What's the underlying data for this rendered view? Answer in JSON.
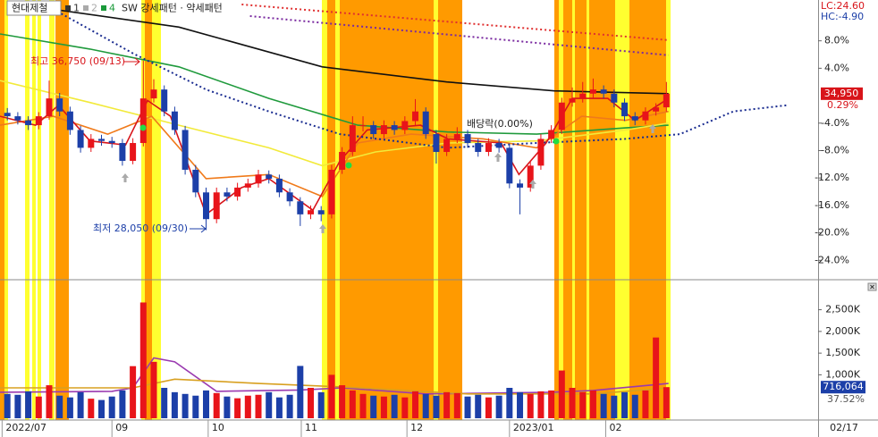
{
  "header": {
    "name": "현대제철",
    "items": [
      {
        "label": "1",
        "color": "#333333"
      },
      {
        "label": "2",
        "color": "#aaaaaa"
      },
      {
        "label": "4",
        "color": "#1a9a3a"
      }
    ],
    "pattern": "SW 강세패턴 · 약세패턴",
    "lc": "LC:24.60",
    "hc": "HC:-4.90"
  },
  "chart_data": [
    {
      "type": "candlestick",
      "xlim": [
        -0.7,
        77.5
      ],
      "ylim": [
        -26.7,
        13.95
      ],
      "yticks": [
        {
          "value": 8,
          "label": "8.0%"
        },
        {
          "value": 4,
          "label": "4.0%"
        },
        {
          "value": -4,
          "label": "-4.0%"
        },
        {
          "value": -8,
          "label": "-8.0%"
        },
        {
          "value": -12,
          "label": "-12.0%"
        },
        {
          "value": -16,
          "label": "-16.0%"
        },
        {
          "value": -20,
          "label": "-20.0%"
        },
        {
          "value": -24,
          "label": "-24.0%"
        }
      ],
      "up_color": "#e8141a",
      "down_color": "#1c3fa8",
      "ohlc": [
        [
          -2.5,
          -1.8,
          -3.6,
          -3.0
        ],
        [
          -3.0,
          -2.4,
          -4.2,
          -3.6
        ],
        [
          -3.6,
          -3.0,
          -5.0,
          -4.3
        ],
        [
          -4.3,
          -2.4,
          -4.9,
          -3.0
        ],
        [
          -3.0,
          2.2,
          -3.5,
          -0.4
        ],
        [
          -0.4,
          0.4,
          -3.0,
          -2.3
        ],
        [
          -2.3,
          -1.6,
          -5.7,
          -5.0
        ],
        [
          -5.0,
          -4.4,
          -8.3,
          -7.6
        ],
        [
          -7.6,
          -5.6,
          -8.2,
          -6.3
        ],
        [
          -6.3,
          -5.7,
          -7.3,
          -6.6
        ],
        [
          -6.6,
          -6.0,
          -7.6,
          -6.9
        ],
        [
          -6.9,
          -6.3,
          -10.2,
          -9.5
        ],
        [
          -9.5,
          -6.2,
          -10.0,
          -6.9
        ],
        [
          -6.9,
          5.1,
          -7.4,
          -0.4
        ],
        [
          -0.4,
          2.4,
          -1.0,
          0.9
        ],
        [
          0.9,
          1.5,
          -3.0,
          -2.3
        ],
        [
          -2.3,
          -1.6,
          -5.7,
          -5.0
        ],
        [
          -5.0,
          -4.4,
          -11.5,
          -10.8
        ],
        [
          -10.8,
          -10.1,
          -14.8,
          -14.1
        ],
        [
          -14.1,
          -13.4,
          -19.6,
          -18.0
        ],
        [
          -18.0,
          -13.4,
          -18.6,
          -14.1
        ],
        [
          -14.1,
          -13.4,
          -15.4,
          -14.7
        ],
        [
          -14.7,
          -12.7,
          -15.3,
          -13.4
        ],
        [
          -13.4,
          -12.1,
          -14.0,
          -12.8
        ],
        [
          -12.8,
          -10.8,
          -13.4,
          -11.5
        ],
        [
          -11.5,
          -10.9,
          -12.8,
          -12.1
        ],
        [
          -12.1,
          -11.5,
          -14.8,
          -14.1
        ],
        [
          -14.1,
          -13.5,
          -16.1,
          -15.4
        ],
        [
          -15.4,
          -14.8,
          -19.0,
          -17.3
        ],
        [
          -17.3,
          -16.0,
          -18.0,
          -16.7
        ],
        [
          -16.7,
          -16.1,
          -18.3,
          -17.3
        ],
        [
          -17.3,
          -10.1,
          -17.9,
          -10.8
        ],
        [
          -10.8,
          -7.5,
          -11.4,
          -8.2
        ],
        [
          -8.2,
          -3.0,
          -8.8,
          -4.3
        ],
        [
          -4.3,
          -3.0,
          -5.2,
          -4.3
        ],
        [
          -4.3,
          -3.7,
          -6.3,
          -5.6
        ],
        [
          -5.6,
          -3.6,
          -6.2,
          -4.3
        ],
        [
          -4.3,
          -3.7,
          -5.7,
          -5.0
        ],
        [
          -5.0,
          -3.0,
          -5.6,
          -3.7
        ],
        [
          -3.7,
          -0.5,
          -4.3,
          -2.3
        ],
        [
          -2.3,
          -1.7,
          -6.3,
          -5.6
        ],
        [
          -5.6,
          -5.0,
          -9.9,
          -8.2
        ],
        [
          -8.2,
          -5.6,
          -8.8,
          -6.3
        ],
        [
          -6.3,
          -4.6,
          -6.9,
          -5.6
        ],
        [
          -5.6,
          -5.0,
          -7.6,
          -6.9
        ],
        [
          -6.9,
          -6.3,
          -8.9,
          -8.2
        ],
        [
          -8.2,
          -6.2,
          -8.8,
          -6.9
        ],
        [
          -6.9,
          -6.3,
          -8.3,
          -7.6
        ],
        [
          -7.6,
          -7.0,
          -13.5,
          -12.8
        ],
        [
          -12.8,
          -12.2,
          -17.3,
          -13.4
        ],
        [
          -13.4,
          -9.5,
          -14.0,
          -10.2
        ],
        [
          -10.2,
          -5.6,
          -10.8,
          -6.3
        ],
        [
          -6.3,
          -4.3,
          -6.9,
          -5.0
        ],
        [
          -5.0,
          -0.3,
          -5.6,
          -1.0
        ],
        [
          -1.0,
          1.2,
          -1.6,
          -0.4
        ],
        [
          -0.4,
          2.0,
          -1.0,
          0.3
        ],
        [
          0.3,
          2.5,
          -0.3,
          0.9
        ],
        [
          0.9,
          1.5,
          -0.4,
          0.3
        ],
        [
          0.3,
          0.9,
          -1.7,
          -1.0
        ],
        [
          -1.0,
          -0.4,
          -3.7,
          -3.0
        ],
        [
          -3.0,
          -2.4,
          -4.3,
          -3.6
        ],
        [
          -3.6,
          -1.7,
          -4.2,
          -2.3
        ],
        [
          -2.3,
          -1.1,
          -2.9,
          -1.7
        ],
        [
          -1.7,
          2.0,
          -2.3,
          0.29
        ]
      ],
      "lines": [
        {
          "color": "#111111",
          "style": "solid",
          "x": [
            4.4,
            16.4,
            30.1,
            42,
            52.3,
            63.2
          ],
          "values": [
            12.6,
            10,
            4.2,
            2,
            0.7,
            0.3
          ]
        },
        {
          "color": "#1f9a3c",
          "style": "solid",
          "x": [
            -0.7,
            7.9,
            16.4,
            25,
            33.5,
            42.1,
            50.6,
            59.1,
            63.2
          ],
          "values": [
            9,
            6.8,
            4.2,
            -0.4,
            -4.3,
            -5.3,
            -5.6,
            -4.7,
            -4.3
          ]
        },
        {
          "color": "#f2ea3a",
          "style": "solid",
          "x": [
            -0.7,
            7.9,
            16.4,
            25,
            30.1,
            35.2,
            42.1,
            50.6,
            59.1,
            63.2
          ],
          "values": [
            2.2,
            -1,
            -4.3,
            -7.6,
            -10.2,
            -8.2,
            -6.9,
            -6.6,
            -5,
            -4
          ]
        },
        {
          "color": "#f07a1a",
          "style": "solid",
          "x": [
            -0.7,
            4.4,
            9.6,
            13.8,
            19,
            25,
            30.1,
            33.5,
            38.6,
            45.5,
            50.6,
            54.9,
            59.1,
            63.2
          ],
          "values": [
            -4.3,
            -3,
            -5.6,
            -3,
            -12.1,
            -11.5,
            -14.7,
            -6.9,
            -5.6,
            -6.3,
            -7.6,
            -3,
            -3.6,
            -2.3
          ]
        },
        {
          "color": "#d8141a",
          "style": "solid",
          "x": [
            -0.7,
            2.7,
            4.9,
            7.9,
            11.3,
            13.4,
            15.6,
            19,
            22.4,
            25,
            29.2,
            31.8,
            34.4,
            39.5,
            42.1,
            47.2,
            48.9,
            51.5,
            54,
            57.4,
            60,
            63.2
          ],
          "values": [
            -3,
            -4.3,
            -1.4,
            -6.6,
            -7.2,
            -0.7,
            -3,
            -17.3,
            -13.4,
            -12.1,
            -16.7,
            -9.5,
            -5,
            -4.3,
            -6.3,
            -6.9,
            -11.5,
            -6.9,
            -0.4,
            -0.4,
            -3.6,
            -0.4
          ]
        },
        {
          "color": "#e03030",
          "style": "dotted",
          "x": [
            22.4,
            63.2
          ],
          "values": [
            13.3,
            8.1
          ]
        },
        {
          "color": "#7a2aa0",
          "style": "dotted",
          "x": [
            23.2,
            63.2
          ],
          "values": [
            11.6,
            5.9
          ]
        },
        {
          "color": "#1a2c90",
          "style": "dotted",
          "x": [
            4.4,
            12.1,
            19,
            25,
            31.8,
            42.1,
            50.6,
            59.1,
            64.3,
            69.4,
            74.5
          ],
          "values": [
            12.6,
            6.1,
            0.9,
            -2.3,
            -5.6,
            -7.6,
            -6.9,
            -6.3,
            -5.6,
            -2.3,
            -1.4
          ]
        }
      ],
      "last_price": "34,950",
      "last_label": {
        "value": 0.29,
        "label": "0.29%"
      },
      "annotations": [
        "최고 36,750 (09/13)",
        "최저 28,050 (09/30)",
        "배당락(0.00%)"
      ]
    },
    {
      "type": "bar",
      "xlim": [
        -0.7,
        77.5
      ],
      "ylim": [
        0,
        3150
      ],
      "yticks": [
        {
          "value": 1000,
          "label": "1,000K"
        },
        {
          "value": 1500,
          "label": "1,500K"
        },
        {
          "value": 2000,
          "label": "2,000K"
        },
        {
          "value": 2500,
          "label": "2,500K"
        }
      ],
      "xticks": [
        {
          "value": -0.5,
          "label": "2022/07"
        },
        {
          "value": 10,
          "label": "09"
        },
        {
          "value": 19.2,
          "label": "10"
        },
        {
          "value": 28.1,
          "label": "11"
        },
        {
          "value": 38.2,
          "label": "12"
        },
        {
          "value": 48,
          "label": "2023/01"
        },
        {
          "value": 57.2,
          "label": "02"
        }
      ],
      "last_date": "02/17",
      "values": [
        560,
        540,
        620,
        500,
        760,
        520,
        480,
        600,
        450,
        420,
        500,
        640,
        1200,
        2667,
        1300,
        700,
        600,
        560,
        520,
        640,
        580,
        500,
        460,
        520,
        540,
        600,
        480,
        540,
        1205,
        700,
        600,
        1000,
        760,
        640,
        560,
        520,
        500,
        540,
        480,
        620,
        560,
        520,
        600,
        580,
        500,
        540,
        480,
        520,
        700,
        600,
        560,
        620,
        640,
        1100,
        700,
        600,
        640,
        560,
        520,
        600,
        540,
        640,
        1860,
        716.064
      ],
      "lines": [
        {
          "color": "#9a3ab0",
          "style": "solid",
          "x": [
            -0.7,
            10,
            12,
            14,
            16,
            20,
            28,
            32,
            40,
            52,
            56,
            63.2
          ],
          "values": [
            600,
            620,
            700,
            1390,
            1300,
            620,
            650,
            700,
            560,
            600,
            640,
            800
          ]
        },
        {
          "color": "#d8a020",
          "style": "solid",
          "x": [
            -0.7,
            12,
            16,
            24,
            32,
            44,
            56,
            63.2
          ],
          "values": [
            700,
            700,
            900,
            800,
            720,
            560,
            560,
            700
          ]
        }
      ],
      "last_label": {
        "value": 716.064,
        "label": "716,064"
      },
      "last_ratio": "37.52%"
    }
  ]
}
